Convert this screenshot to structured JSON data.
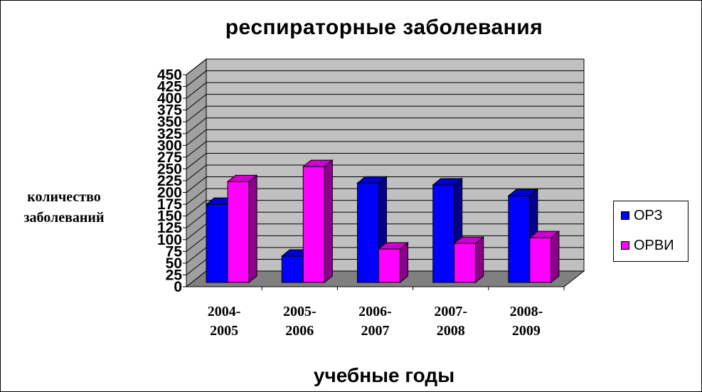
{
  "chart_data": {
    "type": "bar",
    "title": "респираторные  заболевания",
    "xlabel": "учебные годы",
    "ylabel": "количество заболеваний",
    "categories": [
      [
        "2004-",
        "2005"
      ],
      [
        "2005-",
        "2006"
      ],
      [
        "2006-",
        "2007"
      ],
      [
        "2007-",
        "2008"
      ],
      [
        "2008-",
        "2009"
      ]
    ],
    "series": [
      {
        "name": "ОРЗ",
        "color": "#0000ff",
        "values": [
          175,
          65,
          220,
          216,
          193
        ]
      },
      {
        "name": "ОРВИ",
        "color": "#ff00ff",
        "values": [
          223,
          255,
          80,
          92,
          104
        ]
      }
    ],
    "ylim": [
      0,
      450
    ],
    "yticks": [
      "0",
      "25",
      "50",
      "75",
      "100",
      "125",
      "150",
      "175",
      "200",
      "225",
      "250",
      "275",
      "300",
      "325",
      "350",
      "375",
      "400",
      "425",
      "450"
    ],
    "grid": true,
    "legend_position": "right",
    "wall_color": "#c0c0c0",
    "floor_color": "#808080"
  }
}
